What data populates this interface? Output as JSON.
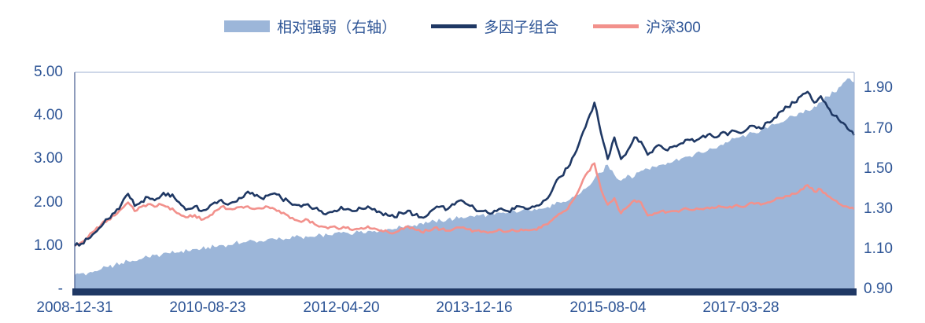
{
  "chart_data": {
    "type": "combo-area-line",
    "title": "",
    "x_tick_labels": [
      "2008-12-31",
      "2010-08-23",
      "2012-04-20",
      "2013-12-16",
      "2015-08-04",
      "2017-03-28"
    ],
    "x_tick_positions": [
      0,
      20,
      40,
      60,
      80,
      100
    ],
    "x_unit": "months-since-2008-12",
    "point_count": 118,
    "left_axis": {
      "ticks": [
        "5.00",
        "4.00",
        "3.00",
        "2.00",
        "1.00",
        "-"
      ],
      "values": [
        5,
        4,
        3,
        2,
        1,
        0
      ],
      "range": [
        0,
        5
      ]
    },
    "right_axis": {
      "ticks": [
        "1.90",
        "1.70",
        "1.50",
        "1.30",
        "1.10",
        "0.90"
      ],
      "values": [
        1.9,
        1.7,
        1.5,
        1.3,
        1.1,
        0.9
      ],
      "range": [
        0.9,
        1.98
      ]
    },
    "grid": false,
    "legend_position": "top-center",
    "series": [
      {
        "name": "相对强弱（右轴）",
        "type": "area",
        "axis": "right",
        "color": "#9CB6D9",
        "values": [
          0.97,
          0.98,
          0.98,
          0.99,
          1.0,
          1.01,
          1.02,
          1.03,
          1.04,
          1.04,
          1.05,
          1.06,
          1.07,
          1.07,
          1.08,
          1.08,
          1.09,
          1.09,
          1.1,
          1.1,
          1.11,
          1.11,
          1.12,
          1.12,
          1.13,
          1.13,
          1.14,
          1.14,
          1.14,
          1.15,
          1.15,
          1.15,
          1.15,
          1.16,
          1.16,
          1.16,
          1.16,
          1.17,
          1.17,
          1.18,
          1.18,
          1.18,
          1.18,
          1.19,
          1.19,
          1.19,
          1.2,
          1.2,
          1.2,
          1.21,
          1.22,
          1.22,
          1.23,
          1.23,
          1.24,
          1.24,
          1.25,
          1.25,
          1.26,
          1.26,
          1.26,
          1.27,
          1.27,
          1.27,
          1.28,
          1.28,
          1.29,
          1.29,
          1.3,
          1.3,
          1.3,
          1.31,
          1.32,
          1.33,
          1.34,
          1.36,
          1.38,
          1.41,
          1.45,
          1.48,
          1.52,
          1.47,
          1.44,
          1.47,
          1.46,
          1.49,
          1.5,
          1.51,
          1.52,
          1.53,
          1.54,
          1.55,
          1.56,
          1.57,
          1.58,
          1.59,
          1.6,
          1.62,
          1.63,
          1.65,
          1.66,
          1.67,
          1.68,
          1.69,
          1.7,
          1.72,
          1.73,
          1.75,
          1.76,
          1.78,
          1.79,
          1.81,
          1.83,
          1.86,
          1.88,
          1.91,
          1.95,
          1.93
        ]
      },
      {
        "name": "多因子组合",
        "type": "line",
        "axis": "left",
        "color": "#1F3864",
        "values": [
          1.0,
          1.05,
          1.16,
          1.3,
          1.45,
          1.62,
          1.76,
          1.96,
          2.2,
          1.92,
          2.02,
          2.12,
          2.05,
          2.16,
          2.21,
          2.1,
          1.94,
          1.85,
          1.91,
          1.8,
          1.86,
          2.0,
          2.06,
          1.95,
          2.01,
          2.1,
          2.25,
          2.15,
          2.1,
          2.16,
          2.21,
          2.1,
          2.04,
          1.95,
          1.9,
          1.96,
          1.86,
          1.8,
          1.76,
          1.81,
          1.9,
          1.85,
          1.8,
          1.86,
          1.91,
          1.85,
          1.76,
          1.7,
          1.66,
          1.76,
          1.81,
          1.71,
          1.66,
          1.71,
          1.86,
          1.91,
          1.85,
          1.95,
          2.05,
          1.95,
          1.86,
          1.8,
          1.76,
          1.81,
          1.86,
          1.8,
          1.85,
          1.9,
          1.85,
          1.9,
          1.96,
          2.1,
          2.4,
          2.6,
          2.8,
          3.1,
          3.5,
          3.9,
          4.3,
          3.6,
          3.0,
          3.5,
          3.0,
          3.2,
          3.5,
          3.4,
          3.1,
          3.25,
          3.3,
          3.2,
          3.3,
          3.36,
          3.45,
          3.4,
          3.5,
          3.56,
          3.5,
          3.6,
          3.55,
          3.65,
          3.6,
          3.7,
          3.76,
          3.7,
          3.85,
          3.95,
          4.1,
          4.2,
          4.3,
          4.45,
          4.55,
          4.3,
          4.45,
          4.2,
          4.0,
          3.85,
          3.7,
          3.55
        ]
      },
      {
        "name": "沪深300",
        "type": "line",
        "axis": "left",
        "color": "#F2918C",
        "values": [
          1.0,
          1.08,
          1.2,
          1.35,
          1.5,
          1.6,
          1.7,
          1.85,
          2.0,
          1.8,
          1.9,
          1.96,
          1.9,
          1.95,
          1.9,
          1.8,
          1.7,
          1.66,
          1.71,
          1.6,
          1.66,
          1.8,
          1.9,
          1.85,
          1.85,
          1.9,
          1.91,
          1.85,
          1.86,
          1.9,
          1.85,
          1.75,
          1.7,
          1.6,
          1.55,
          1.6,
          1.5,
          1.45,
          1.4,
          1.45,
          1.4,
          1.43,
          1.38,
          1.41,
          1.45,
          1.4,
          1.35,
          1.32,
          1.3,
          1.4,
          1.45,
          1.38,
          1.32,
          1.35,
          1.42,
          1.38,
          1.35,
          1.4,
          1.42,
          1.38,
          1.35,
          1.32,
          1.3,
          1.33,
          1.36,
          1.33,
          1.35,
          1.38,
          1.36,
          1.38,
          1.42,
          1.5,
          1.65,
          1.75,
          1.85,
          2.1,
          2.4,
          2.7,
          2.9,
          2.3,
          1.95,
          2.1,
          1.75,
          1.9,
          2.05,
          2.0,
          1.7,
          1.75,
          1.8,
          1.78,
          1.8,
          1.82,
          1.85,
          1.83,
          1.85,
          1.88,
          1.87,
          1.9,
          1.88,
          1.92,
          1.9,
          1.95,
          1.97,
          1.95,
          2.0,
          2.05,
          2.1,
          2.15,
          2.2,
          2.3,
          2.4,
          2.25,
          2.3,
          2.15,
          2.05,
          1.95,
          1.9,
          1.85
        ]
      }
    ],
    "colors": {
      "axis_text": "#2E5596",
      "axis_bar": "#1F3864",
      "plot_border": "#9DAFD0"
    }
  }
}
